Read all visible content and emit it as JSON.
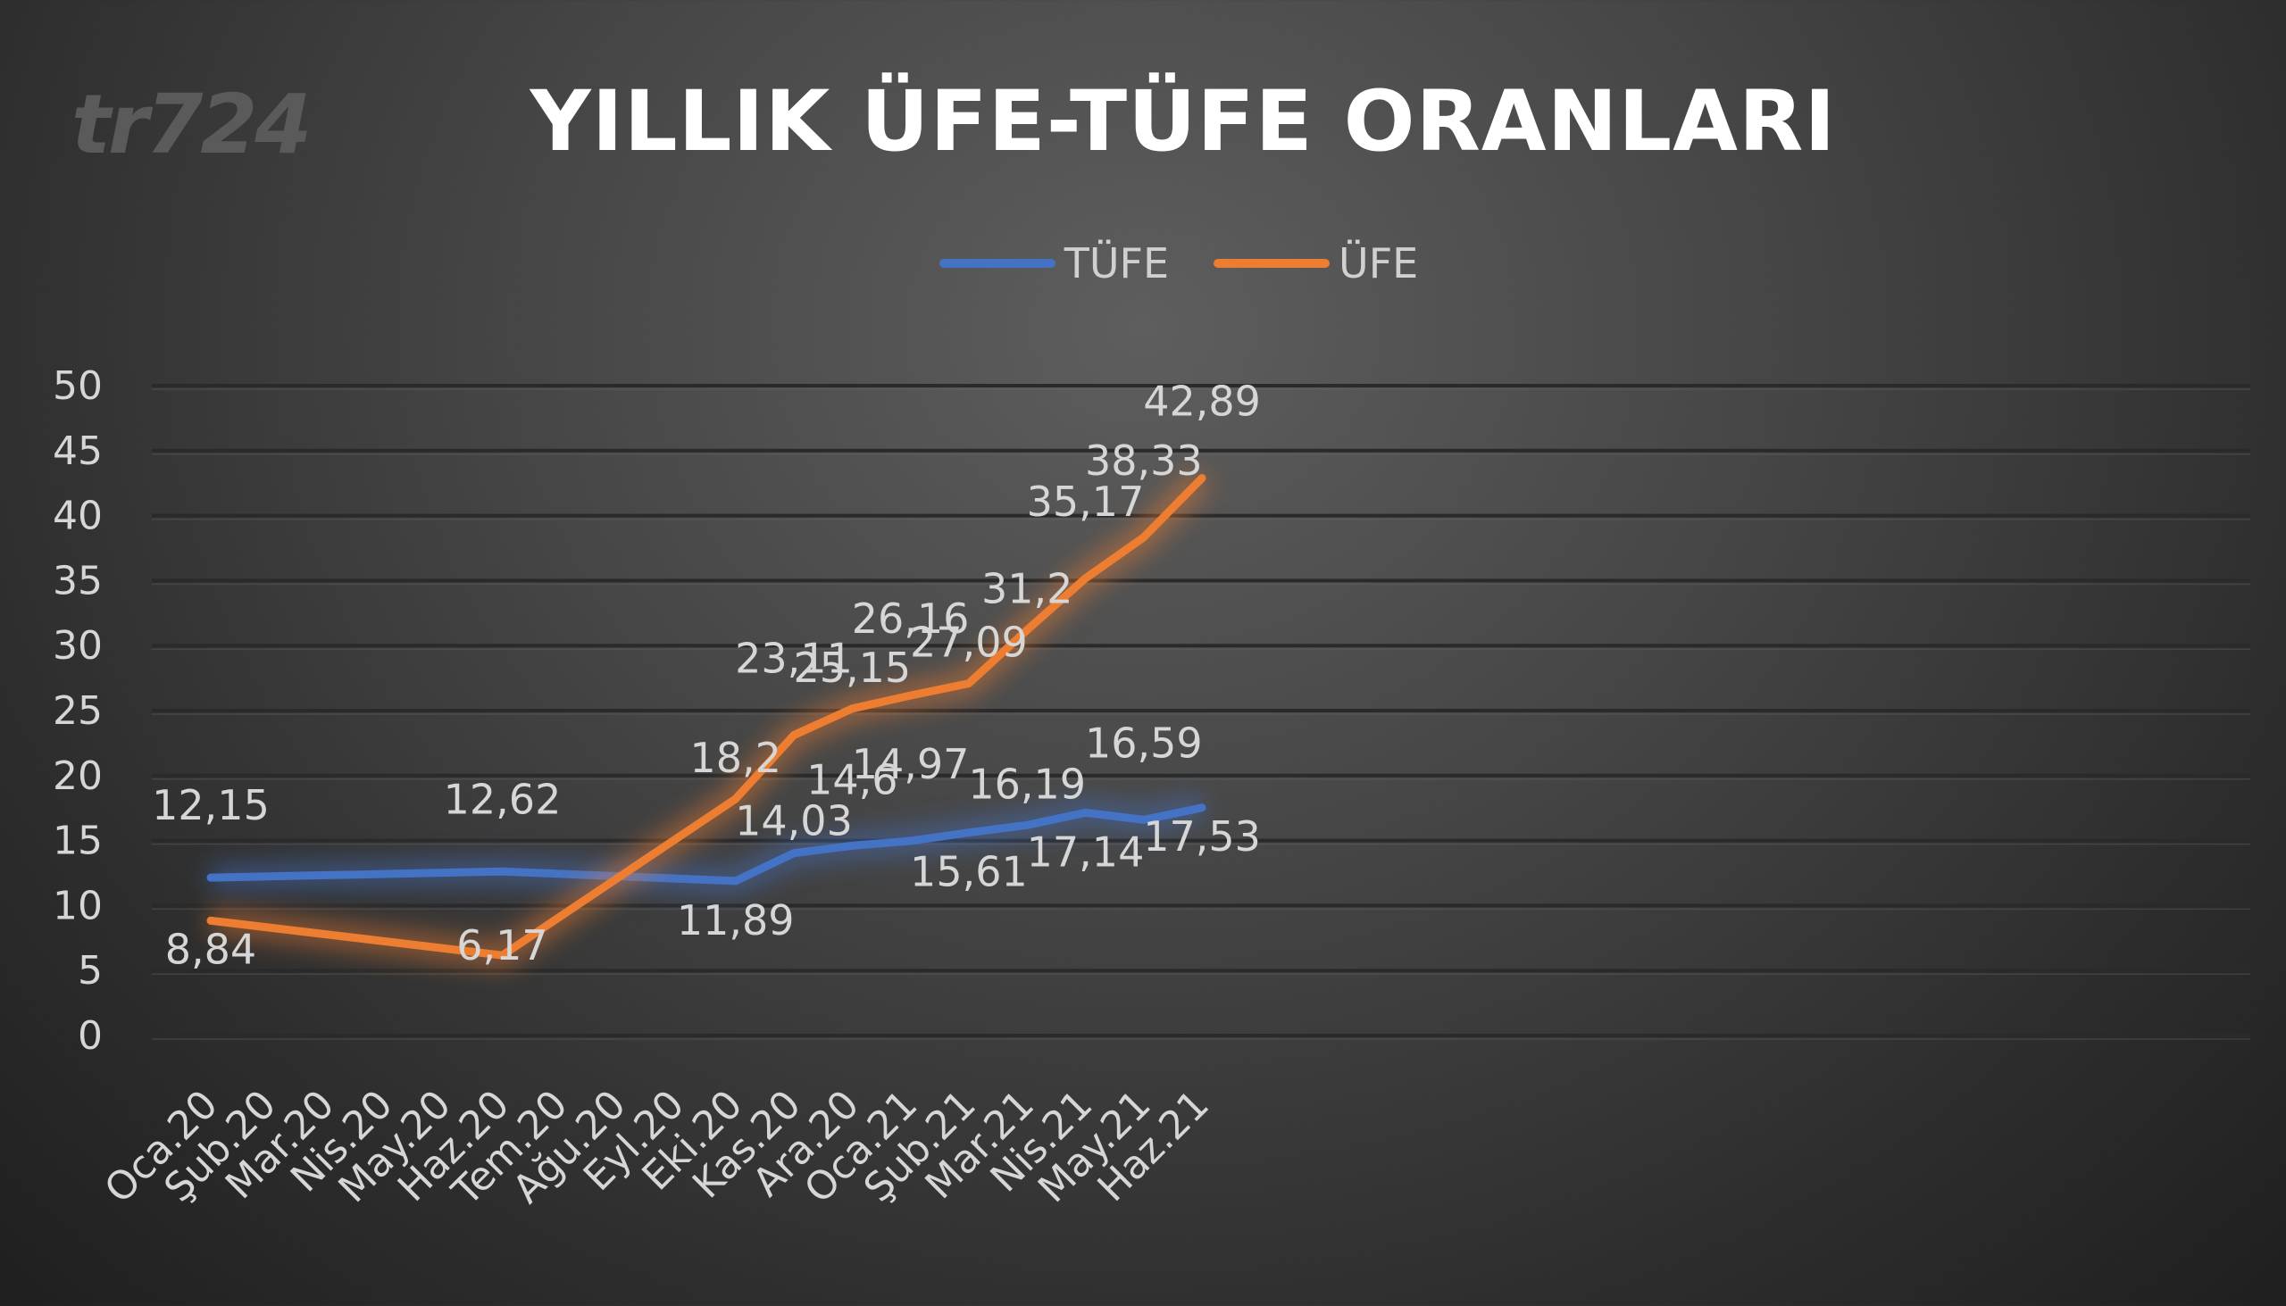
{
  "watermark": "tr724",
  "chart_data": {
    "type": "line",
    "title": "YILLIK ÜFE-TÜFE ORANLARI",
    "xlabel": "",
    "ylabel": "",
    "ylim": [
      0,
      50
    ],
    "yticks": [
      0,
      5,
      10,
      15,
      20,
      25,
      30,
      35,
      40,
      45,
      50
    ],
    "grid": true,
    "legend_position": "top-center",
    "categories": [
      "Oca.20",
      "Şub.20",
      "Mar.20",
      "Nis.20",
      "May.20",
      "Haz.20",
      "Tem.20",
      "Ağu.20",
      "Eyl.20",
      "Eki.20",
      "Kas.20",
      "Ara.20",
      "Oca.21",
      "Şub.21",
      "Mar.21",
      "Nis.21",
      "May.21",
      "Haz.21"
    ],
    "series": [
      {
        "name": "TÜFE",
        "color": "#4472c4",
        "values": [
          12.15,
          null,
          null,
          null,
          null,
          12.62,
          null,
          null,
          null,
          11.89,
          14.03,
          14.6,
          14.97,
          15.61,
          16.19,
          17.14,
          16.59,
          17.53
        ],
        "labels": [
          "12,15",
          "",
          "",
          "",
          "",
          "12,62",
          "",
          "",
          "",
          "11,89",
          "14,03",
          "14,6",
          "14,97",
          "15,61",
          "16,19",
          "17,14",
          "16,59",
          "17,53"
        ]
      },
      {
        "name": "ÜFE",
        "color": "#ed7d31",
        "values": [
          8.84,
          null,
          null,
          null,
          null,
          6.17,
          null,
          null,
          null,
          18.2,
          23.11,
          25.15,
          26.16,
          27.09,
          31.2,
          35.17,
          38.33,
          42.89
        ],
        "labels": [
          "8,84",
          "",
          "",
          "",
          "",
          "6,17",
          "",
          "",
          "",
          "18,2",
          "23,11",
          "25,15",
          "26,16",
          "27,09",
          "31,2",
          "35,17",
          "38,33",
          "42,89"
        ]
      }
    ]
  }
}
